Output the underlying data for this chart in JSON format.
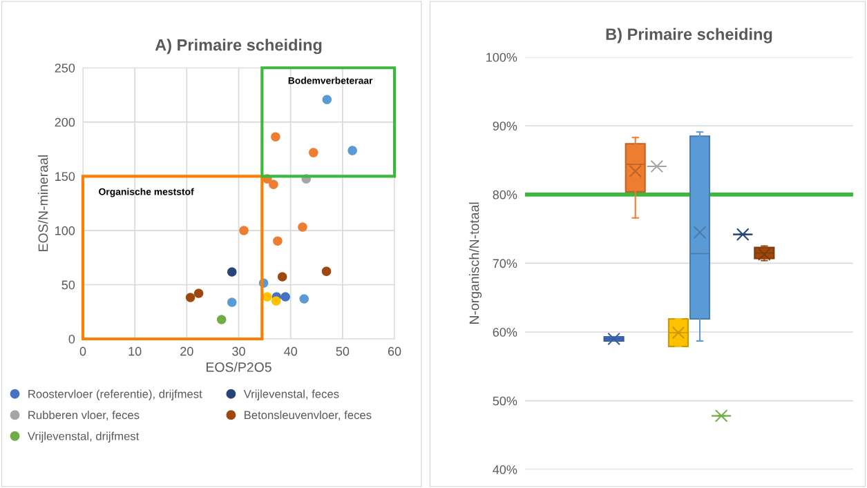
{
  "chart_data": [
    {
      "type": "scatter",
      "title": "A) Primaire scheiding",
      "xlabel": "EOS/P2O5",
      "ylabel": "EOS/N-mineraal",
      "xlim": [
        0,
        60
      ],
      "ylim": [
        0,
        250
      ],
      "xticks": [
        0,
        10,
        20,
        30,
        40,
        50,
        60
      ],
      "yticks": [
        0,
        50,
        100,
        150,
        200,
        250
      ],
      "grid": true,
      "legend": "bottom",
      "marker": "circle",
      "annotations": [
        "Bodemverbeteraar",
        "Organische meststof"
      ],
      "series": [
        {
          "name": "Roostervloer (referentie), drijfmest",
          "color": "#4472c4",
          "x": [
            37.3,
            39.0
          ],
          "values": [
            38.8,
            38.8
          ]
        },
        {
          "color": "#ed7d31",
          "x": [
            37.1,
            44.4,
            35.5,
            36.7,
            31.0,
            42.3,
            37.5
          ],
          "values": [
            186.4,
            171.8,
            147.6,
            142.5,
            99.9,
            103.1,
            90.3
          ]
        },
        {
          "name": "Rubberen vloer, feces",
          "color": "#a5a5a5",
          "x": [
            43.0
          ],
          "values": [
            147.6
          ]
        },
        {
          "color": "#ffc000",
          "x": [
            35.5,
            37.2
          ],
          "values": [
            38.8,
            35.0
          ]
        },
        {
          "color": "#5b9bd5",
          "x": [
            47.0,
            51.9,
            34.8,
            28.7,
            42.6
          ],
          "values": [
            220.7,
            173.7,
            51.5,
            33.7,
            36.9
          ]
        },
        {
          "name": "Vrijlevenstal, drijfmest",
          "color": "#70ad47",
          "x": [
            26.7
          ],
          "values": [
            17.8
          ]
        },
        {
          "name": "Vrijlevenstal, feces",
          "color": "#264478",
          "x": [
            28.7
          ],
          "values": [
            61.7
          ]
        },
        {
          "name": "Betonsleuvenvloer, feces",
          "color": "#9e480e",
          "x": [
            20.7,
            22.3,
            38.4,
            46.9
          ],
          "values": [
            38.2,
            42.0,
            57.3,
            62.3
          ]
        }
      ]
    },
    {
      "type": "box",
      "title": "B) Primaire scheiding",
      "ylabel": "N-organisch/N-totaal",
      "ylim": [
        40,
        100
      ],
      "yticks": [
        {
          "value": 40,
          "label": "40%"
        },
        {
          "value": 50,
          "label": "50%"
        },
        {
          "value": 60,
          "label": "60%"
        },
        {
          "value": 70,
          "label": "70%"
        },
        {
          "value": 80,
          "label": "80%"
        },
        {
          "value": 90,
          "label": "90%"
        },
        {
          "value": 100,
          "label": "100%"
        }
      ],
      "grid": "y",
      "categories": [
        null
      ],
      "series": [
        {
          "color": "#4472c4",
          "boxes": [
            {
              "low": 58.7,
              "q1": 58.7,
              "median": 59.0,
              "q3": 59.3,
              "high": 59.3,
              "mean": 59.0
            }
          ]
        },
        {
          "color": "#ed7d31",
          "boxes": [
            {
              "low": 76.6,
              "q1": 80.4,
              "median": 84.4,
              "q3": 87.4,
              "high": 88.3,
              "mean": 83.4
            }
          ]
        },
        {
          "color": "#a5a5a5",
          "boxes": [
            {
              "low": 84.1,
              "q1": 84.1,
              "median": 84.1,
              "q3": 84.1,
              "high": 84.1,
              "mean": 84.1
            }
          ]
        },
        {
          "color": "#ffc000",
          "boxes": [
            {
              "low": 57.9,
              "q1": 57.9,
              "median": 59.9,
              "q3": 61.9,
              "high": 61.9,
              "mean": 59.9
            }
          ]
        },
        {
          "color": "#5b9bd5",
          "boxes": [
            {
              "low": 58.7,
              "q1": 61.9,
              "median": 71.4,
              "q3": 88.5,
              "high": 89.1,
              "mean": 74.5
            }
          ]
        },
        {
          "color": "#70ad47",
          "boxes": [
            {
              "low": 47.8,
              "q1": 47.8,
              "median": 47.8,
              "q3": 47.8,
              "high": 47.8,
              "mean": 47.8
            }
          ]
        },
        {
          "color": "#264478",
          "boxes": [
            {
              "low": 74.2,
              "q1": 74.2,
              "median": 74.2,
              "q3": 74.2,
              "high": 74.2,
              "mean": 74.2
            }
          ]
        },
        {
          "color": "#9e480e",
          "boxes": [
            {
              "low": 70.4,
              "q1": 70.7,
              "median": 71.5,
              "q3": 72.3,
              "high": 72.5,
              "mean": 71.3
            }
          ]
        }
      ],
      "ref_lines": [
        {
          "axis": "y",
          "value": 80,
          "color": "#3cb83c"
        }
      ]
    }
  ]
}
